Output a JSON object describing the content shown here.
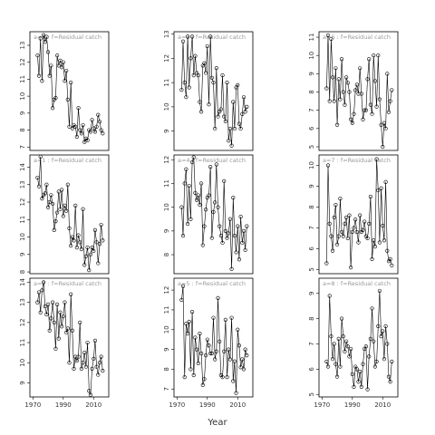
{
  "x_label": "Year",
  "chart_data": [
    {
      "type": "line",
      "title": "a=0 : f=Residual catch",
      "x": [
        1973,
        1974,
        1975,
        1976,
        1977,
        1978,
        1979,
        1980,
        1981,
        1982,
        1983,
        1984,
        1985,
        1986,
        1987,
        1988,
        1989,
        1990,
        1991,
        1992,
        1993,
        1994,
        1995,
        1996,
        1997,
        1998,
        1999,
        2000,
        2001,
        2002,
        2003,
        2004,
        2005,
        2006,
        2007,
        2008,
        2009,
        2010,
        2011,
        2012,
        2013,
        2014,
        2015,
        2016
      ],
      "values": [
        12.4,
        11.2,
        13.4,
        10.9,
        13.6,
        13.2,
        13.5,
        12.6,
        11.2,
        11.8,
        9.3,
        9.8,
        9.9,
        12.4,
        11.8,
        12.1,
        11.7,
        12.0,
        10.9,
        11.5,
        9.8,
        8.2,
        10.8,
        8.1,
        8.3,
        8.2,
        7.6,
        9.3,
        8.0,
        7.8,
        8.3,
        7.3,
        7.5,
        7.4,
        8.0,
        7.9,
        8.6,
        8.1,
        7.9,
        8.2,
        8.9,
        8.5,
        8.0,
        7.8
      ],
      "xlim": [
        1968,
        2020
      ],
      "ylim": [
        6.8,
        13.8
      ],
      "yticks": [
        7,
        8,
        9,
        10,
        11,
        12,
        13
      ]
    },
    {
      "type": "line",
      "title": "a=1 : f=Residual catch",
      "x": [
        1973,
        1974,
        1975,
        1976,
        1977,
        1978,
        1979,
        1980,
        1981,
        1982,
        1983,
        1984,
        1985,
        1986,
        1987,
        1988,
        1989,
        1990,
        1991,
        1992,
        1993,
        1994,
        1995,
        1996,
        1997,
        1998,
        1999,
        2000,
        2001,
        2002,
        2003,
        2004,
        2005,
        2006,
        2007,
        2008,
        2009,
        2010,
        2011,
        2012,
        2013,
        2014,
        2015,
        2016
      ],
      "values": [
        13.4,
        12.9,
        14.6,
        12.2,
        12.4,
        12.5,
        13.0,
        11.7,
        12.0,
        12.4,
        11.9,
        10.4,
        10.9,
        11.4,
        12.6,
        11.6,
        12.7,
        11.2,
        11.8,
        11.5,
        13.0,
        10.5,
        9.5,
        10.0,
        9.8,
        11.8,
        9.4,
        10.1,
        9.7,
        9.3,
        11.6,
        8.4,
        8.9,
        9.4,
        8.1,
        9.0,
        9.4,
        9.2,
        10.4,
        9.7,
        8.5,
        9.6,
        10.7,
        9.8
      ],
      "xlim": [
        1968,
        2020
      ],
      "ylim": [
        7.9,
        14.7
      ],
      "yticks": [
        8,
        9,
        10,
        11,
        12,
        13,
        14
      ]
    },
    {
      "type": "line",
      "title": "a=2 : f=Residual catch",
      "x": [
        1973,
        1974,
        1975,
        1976,
        1977,
        1978,
        1979,
        1980,
        1981,
        1982,
        1983,
        1984,
        1985,
        1986,
        1987,
        1988,
        1989,
        1990,
        1991,
        1992,
        1993,
        1994,
        1995,
        1996,
        1997,
        1998,
        1999,
        2000,
        2001,
        2002,
        2003,
        2004,
        2005,
        2006,
        2007,
        2008,
        2009,
        2010,
        2011,
        2012,
        2013,
        2014,
        2015,
        2016
      ],
      "values": [
        13.0,
        13.5,
        12.5,
        13.6,
        14.0,
        12.8,
        12.4,
        12.9,
        11.6,
        12.2,
        13.0,
        12.0,
        10.7,
        12.9,
        11.2,
        12.5,
        11.8,
        12.3,
        13.0,
        11.5,
        11.7,
        10.0,
        13.4,
        11.6,
        9.7,
        10.3,
        10.1,
        10.3,
        12.0,
        9.7,
        10.0,
        10.5,
        9.8,
        11.0,
        8.6,
        8.4,
        9.7,
        10.2,
        11.1,
        9.8,
        9.4,
        10.0,
        10.3,
        9.6
      ],
      "xlim": [
        1968,
        2020
      ],
      "ylim": [
        8.3,
        14.2
      ],
      "yticks": [
        9,
        10,
        11,
        12,
        13,
        14
      ],
      "xticks": [
        1970,
        1990,
        2010
      ]
    },
    {
      "type": "line",
      "title": "a=3 : f=Residual catch",
      "x": [
        1973,
        1974,
        1975,
        1976,
        1977,
        1978,
        1979,
        1980,
        1981,
        1982,
        1983,
        1984,
        1985,
        1986,
        1987,
        1988,
        1989,
        1990,
        1991,
        1992,
        1993,
        1994,
        1995,
        1996,
        1997,
        1998,
        1999,
        2000,
        2001,
        2002,
        2003,
        2004,
        2005,
        2006,
        2007,
        2008,
        2009,
        2010,
        2011,
        2012,
        2013,
        2014,
        2015,
        2016
      ],
      "values": [
        10.7,
        12.7,
        11.0,
        10.4,
        12.9,
        10.8,
        12.0,
        12.9,
        11.3,
        12.1,
        11.4,
        11.3,
        10.2,
        9.8,
        11.7,
        11.8,
        11.4,
        12.5,
        10.1,
        12.9,
        11.2,
        11.0,
        9.1,
        11.6,
        9.6,
        9.8,
        9.9,
        11.3,
        9.6,
        9.4,
        11.0,
        8.6,
        9.1,
        8.4,
        10.2,
        9.1,
        10.8,
        10.9,
        9.3,
        9.1,
        9.7,
        10.4,
        9.8,
        10.0
      ],
      "xlim": [
        1968,
        2020
      ],
      "ylim": [
        8.2,
        13.1
      ],
      "yticks": [
        9,
        10,
        11,
        12,
        13
      ]
    },
    {
      "type": "line",
      "title": "a=4 : f=Residual catch",
      "x": [
        1973,
        1974,
        1975,
        1976,
        1977,
        1978,
        1979,
        1980,
        1981,
        1982,
        1983,
        1984,
        1985,
        1986,
        1987,
        1988,
        1989,
        1990,
        1991,
        1992,
        1993,
        1994,
        1995,
        1996,
        1997,
        1998,
        1999,
        2000,
        2001,
        2002,
        2003,
        2004,
        2005,
        2006,
        2007,
        2008,
        2009,
        2010,
        2011,
        2012,
        2013,
        2014,
        2015,
        2016
      ],
      "values": [
        10.0,
        8.8,
        11.0,
        11.6,
        9.3,
        10.9,
        9.5,
        11.9,
        12.1,
        10.6,
        10.3,
        10.5,
        10.1,
        11.0,
        8.4,
        9.2,
        9.9,
        10.4,
        10.5,
        11.7,
        8.7,
        9.8,
        10.2,
        11.8,
        10.0,
        9.2,
        8.8,
        8.5,
        11.1,
        9.0,
        8.7,
        8.9,
        9.5,
        7.4,
        10.4,
        8.8,
        8.1,
        9.2,
        7.8,
        9.6,
        8.5,
        9.0,
        8.2,
        9.2
      ],
      "xlim": [
        1968,
        2020
      ],
      "ylim": [
        7.2,
        12.2
      ],
      "yticks": [
        8,
        9,
        10,
        11,
        12
      ]
    },
    {
      "type": "line",
      "title": "a=5 : f=Residual catch",
      "x": [
        1973,
        1974,
        1975,
        1976,
        1977,
        1978,
        1979,
        1980,
        1981,
        1982,
        1983,
        1984,
        1985,
        1986,
        1987,
        1988,
        1989,
        1990,
        1991,
        1992,
        1993,
        1994,
        1995,
        1996,
        1997,
        1998,
        1999,
        2000,
        2001,
        2002,
        2003,
        2004,
        2005,
        2006,
        2007,
        2008,
        2009,
        2010,
        2011,
        2012,
        2013,
        2014,
        2015,
        2016
      ],
      "values": [
        11.5,
        12.2,
        7.6,
        10.3,
        9.8,
        10.4,
        8.0,
        10.9,
        7.7,
        9.6,
        9.0,
        8.3,
        9.8,
        8.8,
        7.2,
        7.5,
        8.7,
        9.5,
        9.2,
        8.8,
        8.8,
        10.6,
        8.5,
        8.9,
        11.6,
        9.4,
        7.7,
        7.6,
        8.9,
        10.5,
        7.6,
        9.0,
        8.5,
        10.6,
        7.4,
        8.4,
        6.8,
        10.0,
        9.2,
        8.1,
        8.5,
        8.0,
        9.0,
        8.7
      ],
      "xlim": [
        1968,
        2020
      ],
      "ylim": [
        6.6,
        12.6
      ],
      "yticks": [
        7,
        8,
        9,
        10,
        11,
        12
      ],
      "xticks": [
        1970,
        1990,
        2010
      ]
    },
    {
      "type": "line",
      "title": "a=6 : f=Residual catch",
      "x": [
        1973,
        1974,
        1975,
        1976,
        1977,
        1978,
        1979,
        1980,
        1981,
        1982,
        1983,
        1984,
        1985,
        1986,
        1987,
        1988,
        1989,
        1990,
        1991,
        1992,
        1993,
        1994,
        1995,
        1996,
        1997,
        1998,
        1999,
        2000,
        2001,
        2002,
        2003,
        2004,
        2005,
        2006,
        2007,
        2008,
        2009,
        2010,
        2011,
        2012,
        2013,
        2014,
        2015,
        2016
      ],
      "values": [
        8.2,
        11.1,
        7.5,
        10.9,
        8.8,
        7.5,
        9.3,
        6.2,
        8.7,
        7.6,
        9.8,
        8.0,
        7.3,
        8.8,
        8.5,
        8.0,
        6.5,
        6.3,
        6.8,
        8.1,
        8.4,
        7.9,
        9.3,
        7.9,
        6.5,
        7.0,
        7.0,
        8.7,
        9.8,
        7.3,
        6.8,
        10.0,
        8.6,
        7.2,
        10.0,
        7.6,
        6.2,
        5.0,
        6.3,
        6.0,
        9.0,
        6.9,
        7.5,
        8.1
      ],
      "xlim": [
        1968,
        2020
      ],
      "ylim": [
        4.8,
        11.3
      ],
      "yticks": [
        5,
        6,
        7,
        8,
        9,
        10,
        11
      ]
    },
    {
      "type": "line",
      "title": "a=7 : f=Residual catch",
      "x": [
        1973,
        1974,
        1975,
        1976,
        1977,
        1978,
        1979,
        1980,
        1981,
        1982,
        1983,
        1984,
        1985,
        1986,
        1987,
        1988,
        1989,
        1990,
        1991,
        1992,
        1993,
        1994,
        1995,
        1996,
        1997,
        1998,
        1999,
        2000,
        2001,
        2002,
        2003,
        2004,
        2005,
        2006,
        2007,
        2008,
        2009,
        2010,
        2011,
        2012,
        2013,
        2014,
        2015,
        2016
      ],
      "values": [
        5.3,
        10.0,
        7.2,
        6.6,
        5.9,
        7.5,
        8.1,
        6.2,
        6.6,
        8.4,
        6.8,
        6.6,
        7.2,
        7.5,
        6.5,
        7.6,
        5.1,
        6.8,
        7.0,
        7.4,
        6.8,
        6.3,
        7.6,
        6.8,
        6.9,
        7.3,
        6.6,
        6.5,
        7.2,
        8.5,
        5.5,
        6.4,
        6.1,
        10.3,
        8.8,
        6.3,
        8.9,
        7.1,
        6.4,
        9.2,
        5.9,
        5.4,
        5.5,
        5.2
      ],
      "xlim": [
        1968,
        2020
      ],
      "ylim": [
        4.8,
        10.5
      ],
      "yticks": [
        5,
        6,
        7,
        8,
        9,
        10
      ]
    },
    {
      "type": "line",
      "title": "a=8 : f=Residual catch",
      "x": [
        1973,
        1974,
        1975,
        1976,
        1977,
        1978,
        1979,
        1980,
        1981,
        1982,
        1983,
        1984,
        1985,
        1986,
        1987,
        1988,
        1989,
        1990,
        1991,
        1992,
        1993,
        1994,
        1995,
        1996,
        1997,
        1998,
        1999,
        2000,
        2001,
        2002,
        2003,
        2004,
        2005,
        2006,
        2007,
        2008,
        2009,
        2010,
        2011,
        2012,
        2013,
        2014,
        2015,
        2016
      ],
      "values": [
        6.3,
        6.1,
        8.9,
        7.3,
        6.4,
        7.0,
        6.2,
        5.7,
        7.2,
        6.1,
        8.0,
        7.3,
        6.7,
        7.1,
        6.9,
        6.5,
        6.8,
        5.8,
        5.3,
        6.1,
        6.0,
        5.5,
        5.9,
        5.3,
        6.2,
        6.8,
        6.9,
        5.2,
        6.5,
        7.2,
        8.4,
        7.1,
        6.1,
        6.3,
        7.7,
        9.1,
        7.3,
        7.5,
        6.4,
        7.7,
        7.0,
        5.7,
        5.5,
        6.3
      ],
      "xlim": [
        1968,
        2020
      ],
      "ylim": [
        4.9,
        9.6
      ],
      "yticks": [
        5,
        6,
        7,
        8,
        9
      ],
      "xticks": [
        1970,
        1990,
        2010
      ]
    }
  ]
}
